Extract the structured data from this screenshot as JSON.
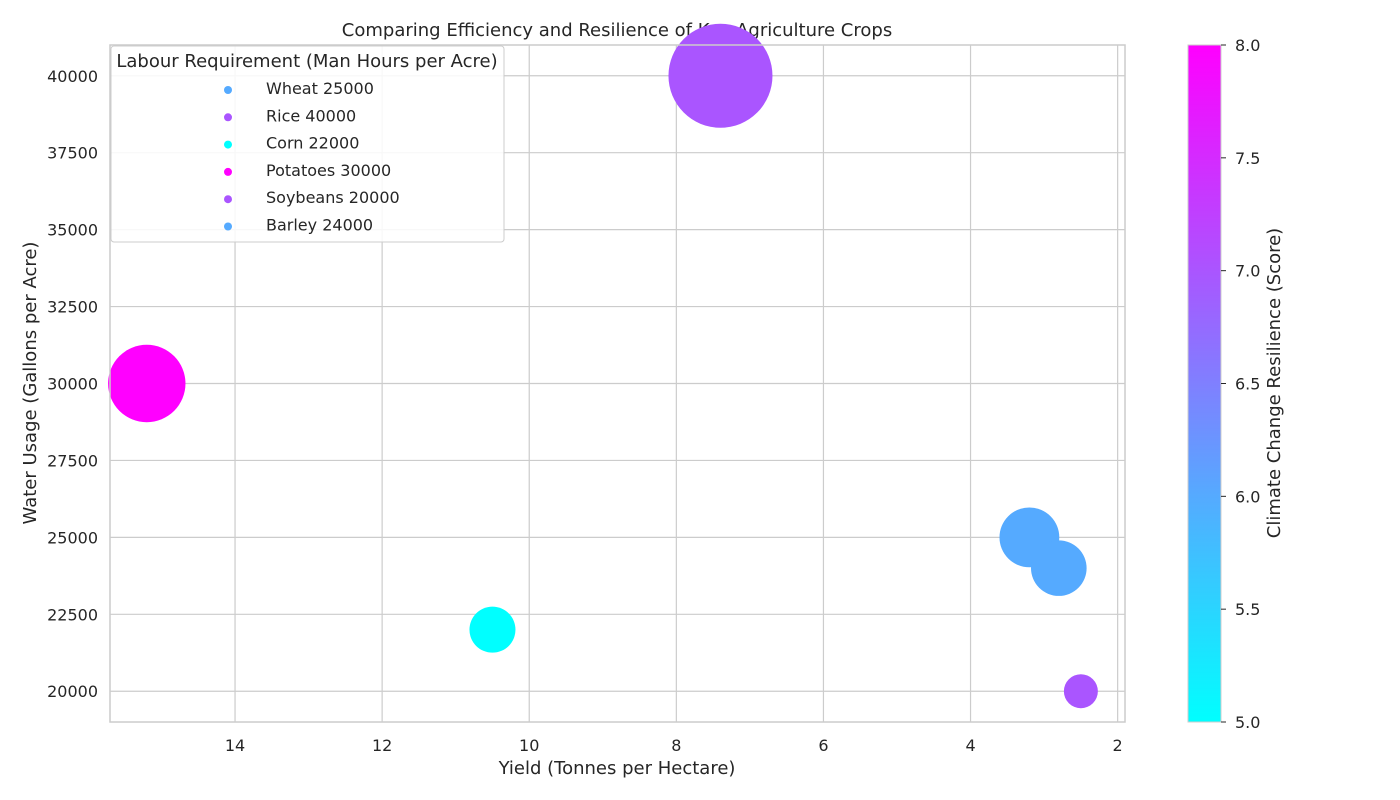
{
  "chart_data": {
    "type": "scatter",
    "title": "Comparing Efficiency and Resilience of Key Agriculture Crops",
    "xlabel": "Yield (Tonnes per Hectare)",
    "ylabel": "Water Usage (Gallons per Acre)",
    "x_inverted": true,
    "xlim": [
      15.7,
      1.9
    ],
    "ylim": [
      19000,
      41000
    ],
    "x_ticks": [
      14,
      12,
      10,
      8,
      6,
      4,
      2
    ],
    "y_ticks": [
      20000,
      22500,
      25000,
      27500,
      30000,
      32500,
      35000,
      37500,
      40000
    ],
    "grid": true,
    "legend": {
      "title": "Labour Requirement (Man Hours per Acre)",
      "placement": "top-left"
    },
    "colorbar": {
      "label": "Climate Change Resilience (Score)",
      "range": [
        5.0,
        8.0
      ],
      "ticks": [
        "5.0",
        "5.5",
        "6.0",
        "6.5",
        "7.0",
        "7.5",
        "8.0"
      ],
      "colormap": "cool"
    },
    "points": [
      {
        "label": "Wheat 25000",
        "x": 3.2,
        "y": 25000,
        "labour": 25000,
        "resilience": 6
      },
      {
        "label": "Rice 40000",
        "x": 7.4,
        "y": 40000,
        "labour": 40000,
        "resilience": 7
      },
      {
        "label": "Corn 22000",
        "x": 10.5,
        "y": 22000,
        "labour": 22000,
        "resilience": 5
      },
      {
        "label": "Potatoes 30000",
        "x": 15.2,
        "y": 30000,
        "labour": 30000,
        "resilience": 8
      },
      {
        "label": "Soybeans 20000",
        "x": 2.5,
        "y": 20000,
        "labour": 20000,
        "resilience": 7
      },
      {
        "label": "Barley 24000",
        "x": 2.8,
        "y": 24000,
        "labour": 24000,
        "resilience": 6
      }
    ]
  }
}
